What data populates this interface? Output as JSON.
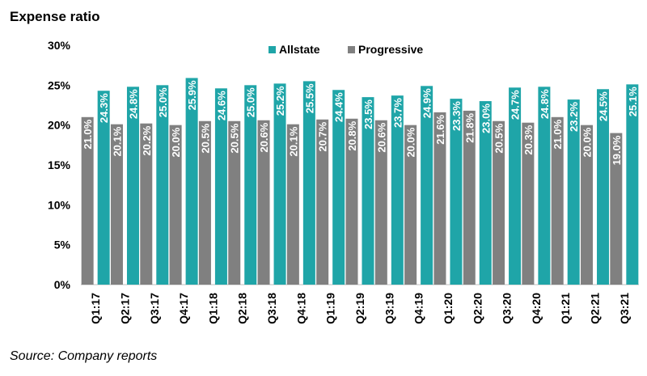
{
  "chart_data": {
    "type": "bar",
    "title": "Expense ratio",
    "source": "Source: Company reports",
    "categories": [
      "Q1:17",
      "Q2:17",
      "Q3:17",
      "Q4:17",
      "Q1:18",
      "Q2:18",
      "Q3:18",
      "Q4:18",
      "Q1:19",
      "Q2:19",
      "Q3:19",
      "Q4:19",
      "Q1:20",
      "Q2:20",
      "Q3:20",
      "Q4:20",
      "Q1:21",
      "Q2:21",
      "Q3:21"
    ],
    "series": [
      {
        "name": "Progressive",
        "color": "#808080",
        "values": [
          21.0,
          20.1,
          20.2,
          20.0,
          20.5,
          20.5,
          20.6,
          20.1,
          20.7,
          20.8,
          20.6,
          20.0,
          21.6,
          21.8,
          20.5,
          20.3,
          21.0,
          20.0,
          19.0
        ],
        "labels": [
          "21.0%",
          "20.1%",
          "20.2%",
          "20.0%",
          "20.5%",
          "20.5%",
          "20.6%",
          "20.1%",
          "20.7%",
          "20.8%",
          "20.6%",
          "20.0%",
          "21.6%",
          "21.8%",
          "20.5%",
          "20.3%",
          "21.0%",
          "20.0%",
          "19.0%"
        ]
      },
      {
        "name": "Allstate",
        "color": "#1fa5a8",
        "values": [
          24.3,
          24.8,
          25.0,
          25.9,
          24.6,
          25.0,
          25.2,
          25.5,
          24.4,
          23.5,
          23.7,
          24.9,
          23.3,
          23.0,
          24.7,
          24.8,
          23.2,
          24.5,
          25.1
        ],
        "labels": [
          "24.3%",
          "24.8%",
          "25.0%",
          "25.9%",
          "24.6%",
          "25.0%",
          "25.2%",
          "25.5%",
          "24.4%",
          "23.5%",
          "23.7%",
          "24.9%",
          "23.3%",
          "23.0%",
          "24.7%",
          "24.8%",
          "23.2%",
          "24.5%",
          "25.1%"
        ]
      }
    ],
    "legend_order": [
      "Allstate",
      "Progressive"
    ],
    "legend_position": "top",
    "ylim": [
      0,
      30
    ],
    "yticks": [
      0,
      5,
      10,
      15,
      20,
      25,
      30
    ],
    "ytick_labels": [
      "0%",
      "5%",
      "10%",
      "15%",
      "20%",
      "25%",
      "30%"
    ],
    "grid": false
  }
}
